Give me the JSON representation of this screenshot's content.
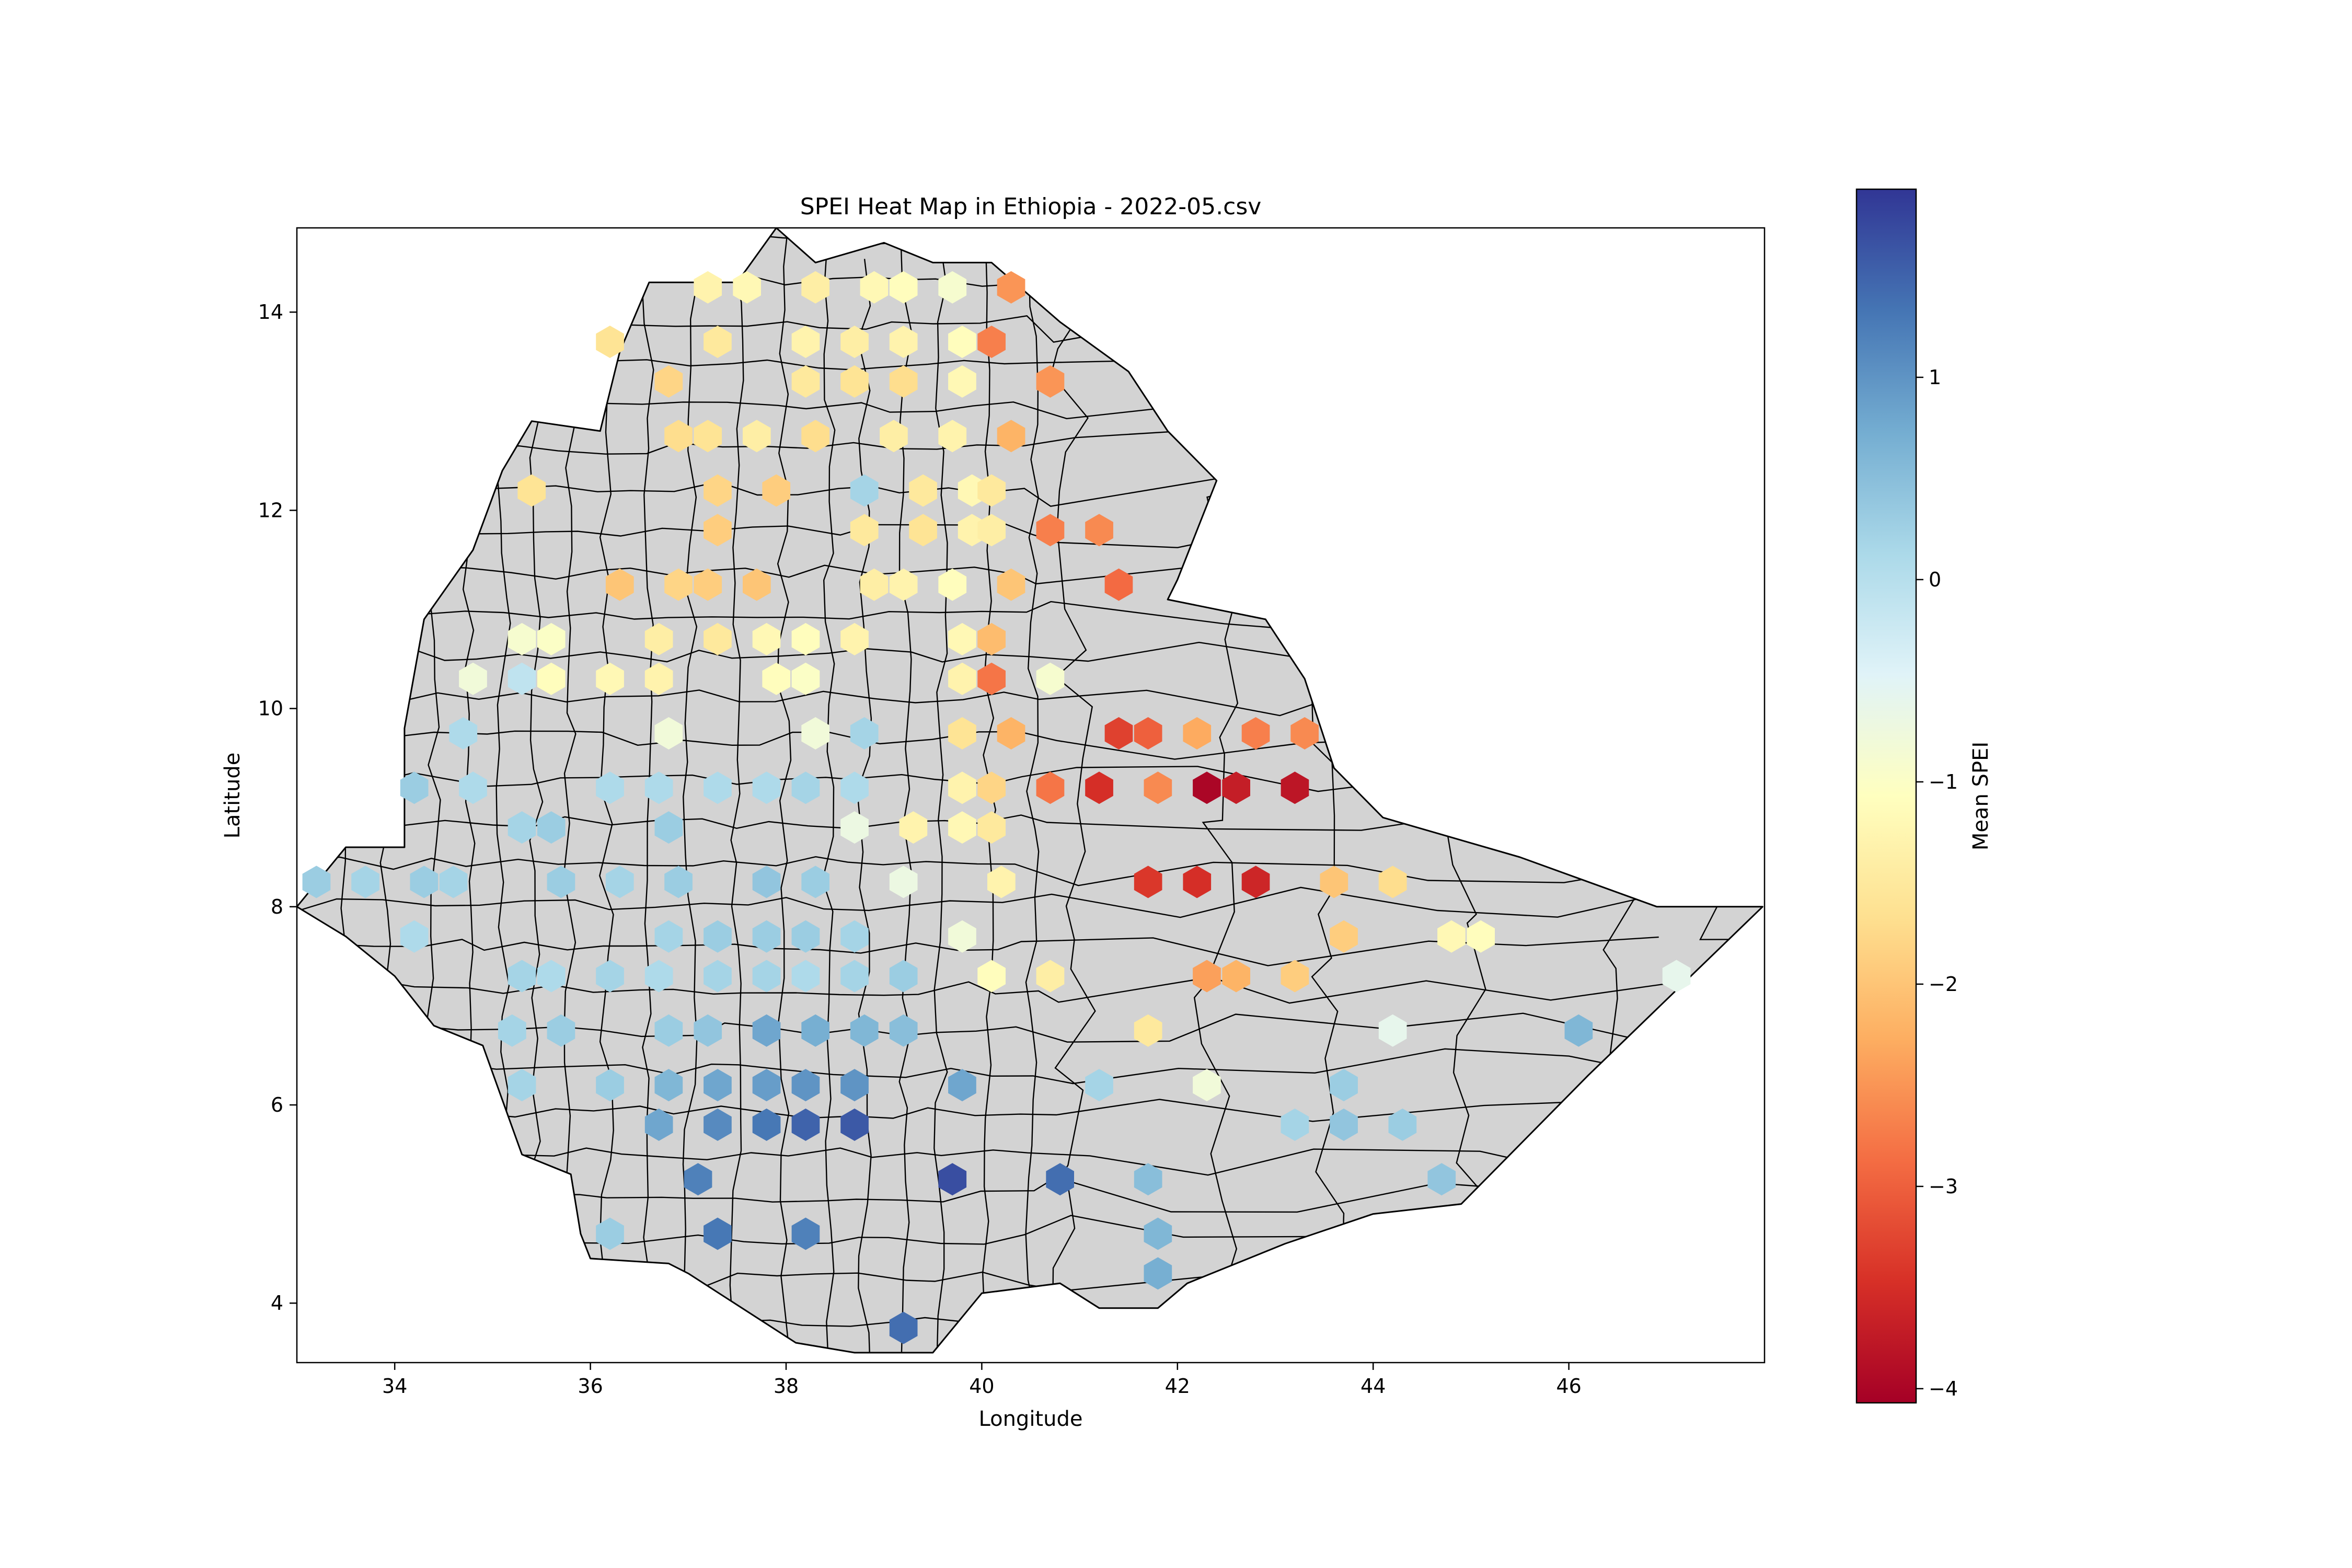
{
  "figure": {
    "title": "SPEI Heat Map in Ethiopia - 2022-05.csv",
    "xlabel": "Longitude",
    "ylabel": "Latitude",
    "colorbar_label": "Mean SPEI"
  },
  "colors": {
    "land_fill": "#d3d3d3",
    "boundary": "#000000",
    "colormap": [
      "#a50026",
      "#d73027",
      "#f46d43",
      "#fdae61",
      "#fee090",
      "#ffffbf",
      "#e0f3f8",
      "#abd9e9",
      "#74add1",
      "#4575b4",
      "#313695"
    ]
  },
  "chart_data": {
    "type": "heatmap",
    "style": "hexbin over administrative boundary map",
    "title": "SPEI Heat Map in Ethiopia - 2022-05.csv",
    "xlabel": "Longitude",
    "ylabel": "Latitude",
    "xlim": [
      33.0,
      48.0
    ],
    "ylim": [
      3.4,
      14.85
    ],
    "xticks": [
      34,
      36,
      38,
      40,
      42,
      44,
      46
    ],
    "yticks": [
      4,
      6,
      8,
      10,
      12,
      14
    ],
    "colorbar": {
      "label": "Mean SPEI",
      "range": [
        -4.07,
        1.93
      ],
      "ticks": [
        1,
        0,
        -1,
        -2,
        -3,
        -4
      ],
      "tick_labels": [
        "1",
        "0",
        "−1",
        "−2",
        "−3",
        "−4"
      ],
      "colormap": "RdYlBu"
    },
    "outline": [
      [
        33.0,
        8.0
      ],
      [
        33.5,
        8.6
      ],
      [
        34.1,
        8.6
      ],
      [
        34.1,
        9.8
      ],
      [
        34.3,
        10.9
      ],
      [
        34.8,
        11.6
      ],
      [
        35.1,
        12.4
      ],
      [
        35.4,
        12.9
      ],
      [
        36.1,
        12.8
      ],
      [
        36.3,
        13.6
      ],
      [
        36.6,
        14.3
      ],
      [
        37.5,
        14.3
      ],
      [
        37.9,
        14.85
      ],
      [
        38.3,
        14.5
      ],
      [
        39.0,
        14.7
      ],
      [
        39.5,
        14.5
      ],
      [
        40.1,
        14.5
      ],
      [
        40.8,
        13.9
      ],
      [
        41.5,
        13.4
      ],
      [
        41.9,
        12.8
      ],
      [
        42.4,
        12.3
      ],
      [
        42.0,
        11.3
      ],
      [
        41.9,
        11.1
      ],
      [
        42.9,
        10.9
      ],
      [
        43.3,
        10.3
      ],
      [
        43.6,
        9.4
      ],
      [
        44.1,
        8.9
      ],
      [
        45.5,
        8.5
      ],
      [
        46.9,
        8.0
      ],
      [
        47.98,
        8.0
      ],
      [
        46.2,
        6.3
      ],
      [
        44.9,
        5.0
      ],
      [
        44.0,
        4.9
      ],
      [
        43.1,
        4.6
      ],
      [
        42.1,
        4.2
      ],
      [
        41.8,
        3.95
      ],
      [
        41.2,
        3.95
      ],
      [
        40.8,
        4.2
      ],
      [
        40.0,
        4.1
      ],
      [
        39.5,
        3.5
      ],
      [
        38.7,
        3.5
      ],
      [
        38.1,
        3.6
      ],
      [
        37.0,
        4.3
      ],
      [
        36.8,
        4.4
      ],
      [
        36.0,
        4.45
      ],
      [
        35.9,
        4.7
      ],
      [
        35.8,
        5.3
      ],
      [
        35.3,
        5.5
      ],
      [
        34.9,
        6.6
      ],
      [
        34.4,
        6.8
      ],
      [
        34.0,
        7.3
      ],
      [
        33.5,
        7.7
      ],
      [
        33.0,
        8.0
      ]
    ],
    "points": [
      {
        "lon": 37.2,
        "lat": 14.25,
        "spei": -1.3
      },
      {
        "lon": 37.6,
        "lat": 14.25,
        "spei": -1.2
      },
      {
        "lon": 38.3,
        "lat": 14.25,
        "spei": -1.4
      },
      {
        "lon": 38.9,
        "lat": 14.25,
        "spei": -1.2
      },
      {
        "lon": 39.2,
        "lat": 14.25,
        "spei": -1.1
      },
      {
        "lon": 39.7,
        "lat": 14.25,
        "spei": -0.9
      },
      {
        "lon": 40.3,
        "lat": 14.25,
        "spei": -2.5
      },
      {
        "lon": 36.2,
        "lat": 13.7,
        "spei": -1.6
      },
      {
        "lon": 37.3,
        "lat": 13.7,
        "spei": -1.5
      },
      {
        "lon": 38.2,
        "lat": 13.7,
        "spei": -1.3
      },
      {
        "lon": 38.7,
        "lat": 13.7,
        "spei": -1.4
      },
      {
        "lon": 39.2,
        "lat": 13.7,
        "spei": -1.3
      },
      {
        "lon": 39.8,
        "lat": 13.7,
        "spei": -1.1
      },
      {
        "lon": 40.1,
        "lat": 13.7,
        "spei": -2.7
      },
      {
        "lon": 36.8,
        "lat": 13.3,
        "spei": -1.8
      },
      {
        "lon": 38.2,
        "lat": 13.3,
        "spei": -1.5
      },
      {
        "lon": 38.7,
        "lat": 13.3,
        "spei": -1.6
      },
      {
        "lon": 39.2,
        "lat": 13.3,
        "spei": -1.7
      },
      {
        "lon": 39.8,
        "lat": 13.3,
        "spei": -1.2
      },
      {
        "lon": 40.7,
        "lat": 13.3,
        "spei": -2.5
      },
      {
        "lon": 36.9,
        "lat": 12.75,
        "spei": -1.7
      },
      {
        "lon": 37.2,
        "lat": 12.75,
        "spei": -1.6
      },
      {
        "lon": 37.7,
        "lat": 12.75,
        "spei": -1.4
      },
      {
        "lon": 38.3,
        "lat": 12.75,
        "spei": -1.7
      },
      {
        "lon": 39.1,
        "lat": 12.75,
        "spei": -1.4
      },
      {
        "lon": 39.7,
        "lat": 12.75,
        "spei": -1.3
      },
      {
        "lon": 40.3,
        "lat": 12.75,
        "spei": -2.2
      },
      {
        "lon": 35.4,
        "lat": 12.2,
        "spei": -1.6
      },
      {
        "lon": 37.3,
        "lat": 12.2,
        "spei": -1.8
      },
      {
        "lon": 37.9,
        "lat": 12.2,
        "spei": -1.9
      },
      {
        "lon": 38.8,
        "lat": 12.2,
        "spei": 0.2
      },
      {
        "lon": 39.4,
        "lat": 12.2,
        "spei": -1.5
      },
      {
        "lon": 39.9,
        "lat": 12.2,
        "spei": -1.2
      },
      {
        "lon": 40.1,
        "lat": 12.2,
        "spei": -1.5
      },
      {
        "lon": 37.3,
        "lat": 11.8,
        "spei": -1.9
      },
      {
        "lon": 38.8,
        "lat": 11.8,
        "spei": -1.5
      },
      {
        "lon": 39.4,
        "lat": 11.8,
        "spei": -1.6
      },
      {
        "lon": 39.9,
        "lat": 11.8,
        "spei": -1.3
      },
      {
        "lon": 40.1,
        "lat": 11.8,
        "spei": -1.4
      },
      {
        "lon": 40.7,
        "lat": 11.8,
        "spei": -2.7
      },
      {
        "lon": 41.2,
        "lat": 11.8,
        "spei": -2.6
      },
      {
        "lon": 36.3,
        "lat": 11.25,
        "spei": -2.0
      },
      {
        "lon": 36.9,
        "lat": 11.25,
        "spei": -1.8
      },
      {
        "lon": 37.2,
        "lat": 11.25,
        "spei": -1.9
      },
      {
        "lon": 37.7,
        "lat": 11.25,
        "spei": -2.0
      },
      {
        "lon": 38.9,
        "lat": 11.25,
        "spei": -1.4
      },
      {
        "lon": 39.2,
        "lat": 11.25,
        "spei": -1.3
      },
      {
        "lon": 39.7,
        "lat": 11.25,
        "spei": -1.1
      },
      {
        "lon": 40.3,
        "lat": 11.25,
        "spei": -2.0
      },
      {
        "lon": 41.4,
        "lat": 11.25,
        "spei": -2.9
      },
      {
        "lon": 35.3,
        "lat": 10.7,
        "spei": -0.9
      },
      {
        "lon": 35.6,
        "lat": 10.7,
        "spei": -1.0
      },
      {
        "lon": 36.7,
        "lat": 10.7,
        "spei": -1.4
      },
      {
        "lon": 37.3,
        "lat": 10.7,
        "spei": -1.5
      },
      {
        "lon": 37.8,
        "lat": 10.7,
        "spei": -1.2
      },
      {
        "lon": 38.2,
        "lat": 10.7,
        "spei": -1.1
      },
      {
        "lon": 38.7,
        "lat": 10.7,
        "spei": -1.3
      },
      {
        "lon": 39.8,
        "lat": 10.7,
        "spei": -1.2
      },
      {
        "lon": 40.1,
        "lat": 10.7,
        "spei": -2.1
      },
      {
        "lon": 34.8,
        "lat": 10.3,
        "spei": -0.8
      },
      {
        "lon": 35.3,
        "lat": 10.3,
        "spei": -0.1
      },
      {
        "lon": 35.6,
        "lat": 10.3,
        "spei": -1.1
      },
      {
        "lon": 36.2,
        "lat": 10.3,
        "spei": -1.2
      },
      {
        "lon": 36.7,
        "lat": 10.3,
        "spei": -1.3
      },
      {
        "lon": 37.9,
        "lat": 10.3,
        "spei": -1.1
      },
      {
        "lon": 38.2,
        "lat": 10.3,
        "spei": -1.0
      },
      {
        "lon": 39.8,
        "lat": 10.3,
        "spei": -1.3
      },
      {
        "lon": 40.1,
        "lat": 10.3,
        "spei": -2.8
      },
      {
        "lon": 40.7,
        "lat": 10.3,
        "spei": -0.9
      },
      {
        "lon": 34.7,
        "lat": 9.75,
        "spei": 0.1
      },
      {
        "lon": 36.8,
        "lat": 9.75,
        "spei": -0.8
      },
      {
        "lon": 38.3,
        "lat": 9.75,
        "spei": -0.8
      },
      {
        "lon": 38.8,
        "lat": 9.75,
        "spei": 0.2
      },
      {
        "lon": 39.8,
        "lat": 9.75,
        "spei": -1.6
      },
      {
        "lon": 40.3,
        "lat": 9.75,
        "spei": -2.2
      },
      {
        "lon": 41.4,
        "lat": 9.75,
        "spei": -3.3
      },
      {
        "lon": 41.7,
        "lat": 9.75,
        "spei": -3.0
      },
      {
        "lon": 42.2,
        "lat": 9.75,
        "spei": -2.3
      },
      {
        "lon": 42.8,
        "lat": 9.75,
        "spei": -2.7
      },
      {
        "lon": 43.3,
        "lat": 9.75,
        "spei": -2.6
      },
      {
        "lon": 34.2,
        "lat": 9.2,
        "spei": 0.3
      },
      {
        "lon": 34.8,
        "lat": 9.2,
        "spei": 0.1
      },
      {
        "lon": 36.2,
        "lat": 9.2,
        "spei": 0.1
      },
      {
        "lon": 36.7,
        "lat": 9.2,
        "spei": 0.1
      },
      {
        "lon": 37.3,
        "lat": 9.2,
        "spei": 0.1
      },
      {
        "lon": 37.8,
        "lat": 9.2,
        "spei": 0.1
      },
      {
        "lon": 38.2,
        "lat": 9.2,
        "spei": 0.2
      },
      {
        "lon": 38.7,
        "lat": 9.2,
        "spei": 0.1
      },
      {
        "lon": 39.8,
        "lat": 9.2,
        "spei": -1.3
      },
      {
        "lon": 40.1,
        "lat": 9.2,
        "spei": -1.8
      },
      {
        "lon": 40.7,
        "lat": 9.2,
        "spei": -2.8
      },
      {
        "lon": 41.2,
        "lat": 9.2,
        "spei": -3.5
      },
      {
        "lon": 41.8,
        "lat": 9.2,
        "spei": -2.6
      },
      {
        "lon": 42.3,
        "lat": 9.2,
        "spei": -4.0
      },
      {
        "lon": 42.6,
        "lat": 9.2,
        "spei": -3.7
      },
      {
        "lon": 43.2,
        "lat": 9.2,
        "spei": -3.8
      },
      {
        "lon": 35.3,
        "lat": 8.8,
        "spei": 0.2
      },
      {
        "lon": 35.6,
        "lat": 8.8,
        "spei": 0.3
      },
      {
        "lon": 36.8,
        "lat": 8.8,
        "spei": 0.3
      },
      {
        "lon": 38.7,
        "lat": 8.8,
        "spei": -0.7
      },
      {
        "lon": 39.3,
        "lat": 8.8,
        "spei": -1.3
      },
      {
        "lon": 39.8,
        "lat": 8.8,
        "spei": -1.2
      },
      {
        "lon": 40.1,
        "lat": 8.8,
        "spei": -1.5
      },
      {
        "lon": 33.2,
        "lat": 8.25,
        "spei": 0.3
      },
      {
        "lon": 33.7,
        "lat": 8.25,
        "spei": 0.2
      },
      {
        "lon": 34.3,
        "lat": 8.25,
        "spei": 0.3
      },
      {
        "lon": 34.6,
        "lat": 8.25,
        "spei": 0.2
      },
      {
        "lon": 35.7,
        "lat": 8.25,
        "spei": 0.3
      },
      {
        "lon": 36.3,
        "lat": 8.25,
        "spei": 0.2
      },
      {
        "lon": 36.9,
        "lat": 8.25,
        "spei": 0.3
      },
      {
        "lon": 37.8,
        "lat": 8.25,
        "spei": 0.4
      },
      {
        "lon": 38.3,
        "lat": 8.25,
        "spei": 0.3
      },
      {
        "lon": 39.2,
        "lat": 8.25,
        "spei": -0.7
      },
      {
        "lon": 40.2,
        "lat": 8.25,
        "spei": -1.3
      },
      {
        "lon": 41.7,
        "lat": 8.25,
        "spei": -3.4
      },
      {
        "lon": 42.2,
        "lat": 8.25,
        "spei": -3.5
      },
      {
        "lon": 42.8,
        "lat": 8.25,
        "spei": -3.6
      },
      {
        "lon": 43.6,
        "lat": 8.25,
        "spei": -2.0
      },
      {
        "lon": 44.2,
        "lat": 8.25,
        "spei": -1.7
      },
      {
        "lon": 34.2,
        "lat": 7.7,
        "spei": 0.1
      },
      {
        "lon": 36.8,
        "lat": 7.7,
        "spei": 0.2
      },
      {
        "lon": 37.3,
        "lat": 7.7,
        "spei": 0.3
      },
      {
        "lon": 37.8,
        "lat": 7.7,
        "spei": 0.3
      },
      {
        "lon": 38.2,
        "lat": 7.7,
        "spei": 0.3
      },
      {
        "lon": 38.7,
        "lat": 7.7,
        "spei": 0.2
      },
      {
        "lon": 39.8,
        "lat": 7.7,
        "spei": -0.8
      },
      {
        "lon": 43.7,
        "lat": 7.7,
        "spei": -1.9
      },
      {
        "lon": 44.8,
        "lat": 7.7,
        "spei": -1.2
      },
      {
        "lon": 45.1,
        "lat": 7.7,
        "spei": -1.1
      },
      {
        "lon": 35.3,
        "lat": 7.3,
        "spei": 0.2
      },
      {
        "lon": 35.6,
        "lat": 7.3,
        "spei": 0.1
      },
      {
        "lon": 36.2,
        "lat": 7.3,
        "spei": 0.2
      },
      {
        "lon": 36.7,
        "lat": 7.3,
        "spei": 0.1
      },
      {
        "lon": 37.3,
        "lat": 7.3,
        "spei": 0.2
      },
      {
        "lon": 37.8,
        "lat": 7.3,
        "spei": 0.2
      },
      {
        "lon": 38.2,
        "lat": 7.3,
        "spei": 0.1
      },
      {
        "lon": 38.7,
        "lat": 7.3,
        "spei": 0.2
      },
      {
        "lon": 39.2,
        "lat": 7.3,
        "spei": 0.3
      },
      {
        "lon": 40.1,
        "lat": 7.3,
        "spei": -1.1
      },
      {
        "lon": 40.7,
        "lat": 7.3,
        "spei": -1.4
      },
      {
        "lon": 42.3,
        "lat": 7.3,
        "spei": -2.4
      },
      {
        "lon": 42.6,
        "lat": 7.3,
        "spei": -2.2
      },
      {
        "lon": 43.2,
        "lat": 7.3,
        "spei": -1.9
      },
      {
        "lon": 47.1,
        "lat": 7.3,
        "spei": -0.6
      },
      {
        "lon": 35.2,
        "lat": 6.75,
        "spei": 0.2
      },
      {
        "lon": 35.7,
        "lat": 6.75,
        "spei": 0.3
      },
      {
        "lon": 36.8,
        "lat": 6.75,
        "spei": 0.3
      },
      {
        "lon": 37.2,
        "lat": 6.75,
        "spei": 0.4
      },
      {
        "lon": 37.8,
        "lat": 6.75,
        "spei": 0.8
      },
      {
        "lon": 38.3,
        "lat": 6.75,
        "spei": 0.7
      },
      {
        "lon": 38.8,
        "lat": 6.75,
        "spei": 0.6
      },
      {
        "lon": 39.2,
        "lat": 6.75,
        "spei": 0.5
      },
      {
        "lon": 41.7,
        "lat": 6.75,
        "spei": -1.5
      },
      {
        "lon": 44.2,
        "lat": 6.75,
        "spei": -0.6
      },
      {
        "lon": 46.1,
        "lat": 6.75,
        "spei": 0.6
      },
      {
        "lon": 35.3,
        "lat": 6.2,
        "spei": 0.2
      },
      {
        "lon": 36.2,
        "lat": 6.2,
        "spei": 0.3
      },
      {
        "lon": 36.8,
        "lat": 6.2,
        "spei": 0.6
      },
      {
        "lon": 37.3,
        "lat": 6.2,
        "spei": 0.8
      },
      {
        "lon": 37.8,
        "lat": 6.2,
        "spei": 0.9
      },
      {
        "lon": 38.2,
        "lat": 6.2,
        "spei": 1.0
      },
      {
        "lon": 38.7,
        "lat": 6.2,
        "spei": 1.0
      },
      {
        "lon": 39.8,
        "lat": 6.2,
        "spei": 0.8
      },
      {
        "lon": 41.2,
        "lat": 6.2,
        "spei": 0.2
      },
      {
        "lon": 42.3,
        "lat": 6.2,
        "spei": -0.8
      },
      {
        "lon": 43.7,
        "lat": 6.2,
        "spei": 0.3
      },
      {
        "lon": 36.7,
        "lat": 5.8,
        "spei": 0.8
      },
      {
        "lon": 37.3,
        "lat": 5.8,
        "spei": 1.1
      },
      {
        "lon": 37.8,
        "lat": 5.8,
        "spei": 1.3
      },
      {
        "lon": 38.2,
        "lat": 5.8,
        "spei": 1.5
      },
      {
        "lon": 38.7,
        "lat": 5.8,
        "spei": 1.6
      },
      {
        "lon": 43.2,
        "lat": 5.8,
        "spei": 0.2
      },
      {
        "lon": 43.7,
        "lat": 5.8,
        "spei": 0.4
      },
      {
        "lon": 44.3,
        "lat": 5.8,
        "spei": 0.3
      },
      {
        "lon": 37.1,
        "lat": 5.25,
        "spei": 1.2
      },
      {
        "lon": 39.7,
        "lat": 5.25,
        "spei": 1.7
      },
      {
        "lon": 40.8,
        "lat": 5.25,
        "spei": 1.4
      },
      {
        "lon": 41.7,
        "lat": 5.25,
        "spei": 0.5
      },
      {
        "lon": 44.7,
        "lat": 5.25,
        "spei": 0.4
      },
      {
        "lon": 36.2,
        "lat": 4.7,
        "spei": 0.3
      },
      {
        "lon": 37.3,
        "lat": 4.7,
        "spei": 1.3
      },
      {
        "lon": 38.2,
        "lat": 4.7,
        "spei": 1.2
      },
      {
        "lon": 41.8,
        "lat": 4.7,
        "spei": 0.6
      },
      {
        "lon": 41.8,
        "lat": 4.3,
        "spei": 0.7
      },
      {
        "lon": 39.2,
        "lat": 3.75,
        "spei": 1.4
      }
    ]
  }
}
